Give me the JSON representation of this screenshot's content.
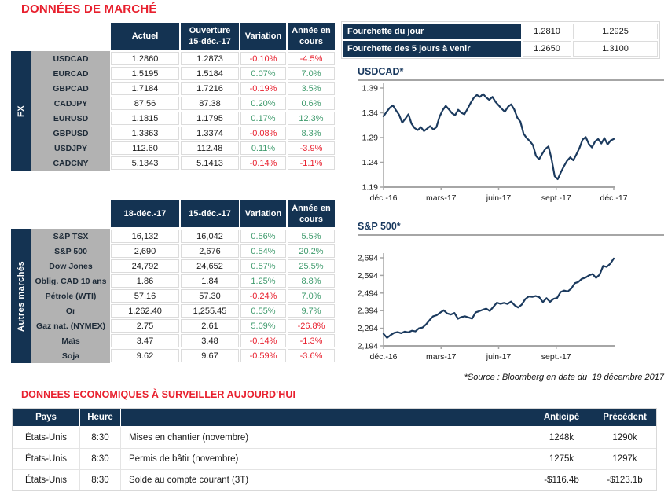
{
  "titles": {
    "market": "DONNÉES DE MARCHÉ",
    "econ": "DONNEES ECONOMIQUES À SURVEILLER AUJOURD'HUI",
    "source": "*Source : Bloomberg en date du  19 décembre 2017"
  },
  "colors": {
    "navy": "#143352",
    "red": "#E8202E",
    "green": "#3F9B6D",
    "label_gray": "#B2B2B2",
    "chart_line": "#1B3A5E"
  },
  "fx_table": {
    "group_label": "FX",
    "headers": [
      "Actuel",
      "Ouverture\n15-déc.-17",
      "Variation",
      "Année en\ncours"
    ],
    "rows": [
      {
        "label": "USDCAD",
        "v1": "1.2860",
        "v2": "1.2873",
        "variation": "-0.10%",
        "ytd": "-4.5%"
      },
      {
        "label": "EURCAD",
        "v1": "1.5195",
        "v2": "1.5184",
        "variation": "0.07%",
        "ytd": "7.0%"
      },
      {
        "label": "GBPCAD",
        "v1": "1.7184",
        "v2": "1.7216",
        "variation": "-0.19%",
        "ytd": "3.5%"
      },
      {
        "label": "CADJPY",
        "v1": "87.56",
        "v2": "87.38",
        "variation": "0.20%",
        "ytd": "0.6%"
      },
      {
        "label": "EURUSD",
        "v1": "1.1815",
        "v2": "1.1795",
        "variation": "0.17%",
        "ytd": "12.3%"
      },
      {
        "label": "GBPUSD",
        "v1": "1.3363",
        "v2": "1.3374",
        "variation": "-0.08%",
        "ytd": "8.3%"
      },
      {
        "label": "USDJPY",
        "v1": "112.60",
        "v2": "112.48",
        "variation": "0.11%",
        "ytd": "-3.9%"
      },
      {
        "label": "CADCNY",
        "v1": "5.1343",
        "v2": "5.1413",
        "variation": "-0.14%",
        "ytd": "-1.1%"
      }
    ]
  },
  "markets_table": {
    "group_label": "Autres marchés",
    "headers": [
      "18-déc.-17",
      "15-déc.-17",
      "Variation",
      "Année en\ncours"
    ],
    "rows": [
      {
        "label": "S&P TSX",
        "v1": "16,132",
        "v2": "16,042",
        "variation": "0.56%",
        "ytd": "5.5%"
      },
      {
        "label": "S&P 500",
        "v1": "2,690",
        "v2": "2,676",
        "variation": "0.54%",
        "ytd": "20.2%"
      },
      {
        "label": "Dow Jones",
        "v1": "24,792",
        "v2": "24,652",
        "variation": "0.57%",
        "ytd": "25.5%"
      },
      {
        "label": "Oblig. CAD 10 ans",
        "v1": "1.86",
        "v2": "1.84",
        "variation": "1.25%",
        "ytd": "8.8%"
      },
      {
        "label": "Pétrole (WTI)",
        "v1": "57.16",
        "v2": "57.30",
        "variation": "-0.24%",
        "ytd": "7.0%"
      },
      {
        "label": "Or",
        "v1": "1,262.40",
        "v2": "1,255.45",
        "variation": "0.55%",
        "ytd": "9.7%"
      },
      {
        "label": "Gaz nat. (NYMEX)",
        "v1": "2.75",
        "v2": "2.61",
        "variation": "5.09%",
        "ytd": "-26.8%"
      },
      {
        "label": "Maïs",
        "v1": "3.47",
        "v2": "3.48",
        "variation": "-0.14%",
        "ytd": "-1.3%"
      },
      {
        "label": "Soja",
        "v1": "9.62",
        "v2": "9.67",
        "variation": "-0.59%",
        "ytd": "-3.6%"
      }
    ]
  },
  "range_table": {
    "rows": [
      {
        "label": "Fourchette du jour",
        "low": "1.2810",
        "high": "1.2925"
      },
      {
        "label": "Fourchette des 5 jours à venir",
        "low": "1.2650",
        "high": "1.3100"
      }
    ]
  },
  "econ_table": {
    "headers": [
      "Pays",
      "Heure",
      "",
      "Anticipé",
      "Précédent"
    ],
    "rows": [
      {
        "pays": "États-Unis",
        "heure": "8:30",
        "evenement": "Mises en chantier (novembre)",
        "anticipe": "1248k",
        "precedent": "1290k"
      },
      {
        "pays": "États-Unis",
        "heure": "8:30",
        "evenement": "Permis de bâtir (novembre)",
        "anticipe": "1275k",
        "precedent": "1297k"
      },
      {
        "pays": "États-Unis",
        "heure": "8:30",
        "evenement": "Solde au compte courant (3T)",
        "anticipe": "-$116.4b",
        "precedent": "-$123.1b"
      }
    ]
  },
  "chart_data": [
    {
      "type": "line",
      "title": "USDCAD*",
      "x_tick_labels": [
        "déc.-16",
        "mars-17",
        "juin-17",
        "sept.-17",
        "déc.-17"
      ],
      "y_tick_values": [
        1.19,
        1.24,
        1.29,
        1.34,
        1.39
      ],
      "y_tick_labels": [
        "1.19",
        "1.24",
        "1.29",
        "1.34",
        "1.39"
      ],
      "ylim": [
        1.19,
        1.4
      ],
      "legend": false,
      "grid": false,
      "values": [
        1.333,
        1.342,
        1.35,
        1.355,
        1.345,
        1.336,
        1.32,
        1.328,
        1.337,
        1.318,
        1.309,
        1.305,
        1.311,
        1.303,
        1.308,
        1.313,
        1.306,
        1.311,
        1.332,
        1.345,
        1.354,
        1.347,
        1.339,
        1.335,
        1.346,
        1.34,
        1.337,
        1.348,
        1.36,
        1.37,
        1.376,
        1.372,
        1.378,
        1.371,
        1.366,
        1.372,
        1.362,
        1.355,
        1.348,
        1.342,
        1.352,
        1.357,
        1.347,
        1.33,
        1.322,
        1.298,
        1.289,
        1.283,
        1.275,
        1.253,
        1.246,
        1.257,
        1.267,
        1.272,
        1.247,
        1.212,
        1.206,
        1.22,
        1.232,
        1.243,
        1.25,
        1.244,
        1.256,
        1.269,
        1.286,
        1.291,
        1.277,
        1.27,
        1.282,
        1.287,
        1.278,
        1.289,
        1.276,
        1.284,
        1.287
      ]
    },
    {
      "type": "line",
      "title": "S&P 500*",
      "x_tick_labels": [
        "déc.-16",
        "mars-17",
        "juin-17",
        "sept.-17"
      ],
      "y_tick_values": [
        2194,
        2294,
        2394,
        2494,
        2594,
        2694
      ],
      "y_tick_labels": [
        "2,194",
        "2,294",
        "2,394",
        "2,494",
        "2,594",
        "2,694"
      ],
      "ylim": [
        2194,
        2714
      ],
      "legend": false,
      "grid": false,
      "values": [
        2262,
        2240,
        2255,
        2268,
        2272,
        2266,
        2275,
        2271,
        2280,
        2276,
        2294,
        2298,
        2316,
        2340,
        2362,
        2368,
        2383,
        2396,
        2378,
        2372,
        2381,
        2348,
        2358,
        2362,
        2355,
        2349,
        2384,
        2391,
        2399,
        2405,
        2392,
        2415,
        2439,
        2433,
        2438,
        2432,
        2446,
        2425,
        2412,
        2428,
        2459,
        2475,
        2472,
        2477,
        2470,
        2442,
        2465,
        2444,
        2461,
        2466,
        2500,
        2508,
        2503,
        2519,
        2550,
        2557,
        2575,
        2581,
        2594,
        2602,
        2580,
        2598,
        2648,
        2642,
        2660,
        2690
      ]
    }
  ]
}
